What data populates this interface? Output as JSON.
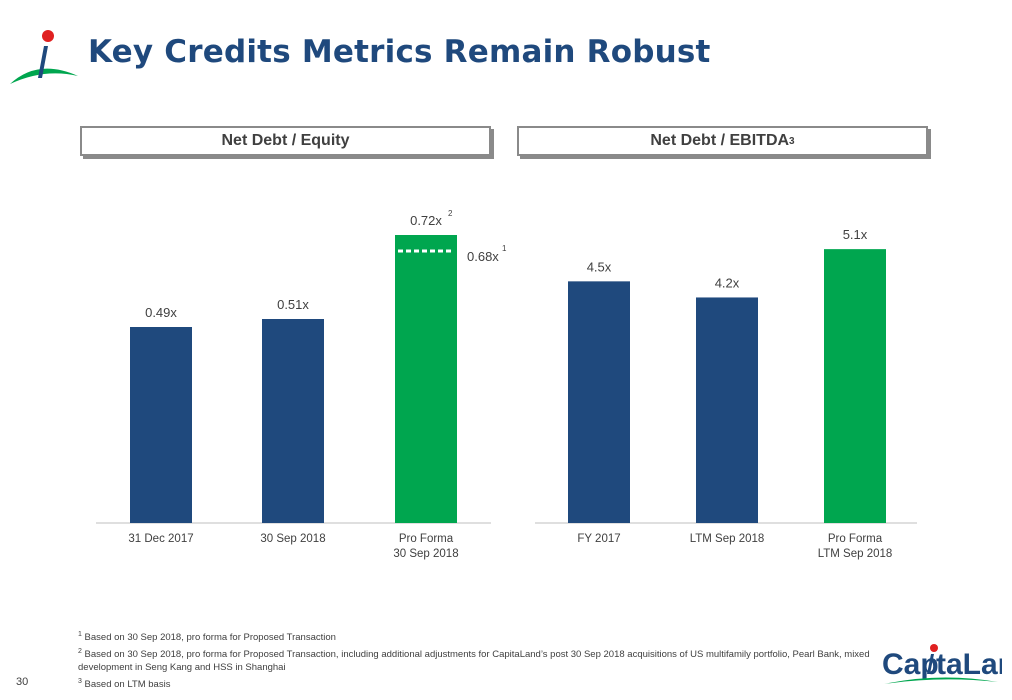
{
  "title": "Key Credits Metrics Remain Robust",
  "page_number": "30",
  "brand": "CapitaLand",
  "colors": {
    "navy": "#1f497d",
    "green": "#00a64f",
    "title": "#1f497d"
  },
  "panels": {
    "left": {
      "heading": "Net Debt / Equity"
    },
    "right": {
      "heading": "Net Debt / EBITDA",
      "heading_sup": "3"
    }
  },
  "chart_data": [
    {
      "type": "bar",
      "title": "Net Debt / Equity",
      "categories": [
        "31 Dec 2017",
        "30 Sep 2018",
        "Pro Forma\n30 Sep 2018"
      ],
      "values": [
        0.49,
        0.51,
        0.72
      ],
      "labels": [
        "0.49x",
        "0.51x",
        "0.72x"
      ],
      "bar_colors": [
        "#1f497d",
        "#1f497d",
        "#00a64f"
      ],
      "label_sups": [
        "",
        "",
        "2"
      ],
      "annotations": [
        {
          "category_index": 2,
          "value": 0.68,
          "label": "0.68x",
          "sup": "1",
          "style": "dashed-line"
        }
      ],
      "ylim": [
        0,
        0.8
      ]
    },
    {
      "type": "bar",
      "title": "Net Debt / EBITDA",
      "categories": [
        "FY 2017",
        "LTM Sep 2018",
        "Pro Forma\nLTM Sep 2018"
      ],
      "values": [
        4.5,
        4.2,
        5.1
      ],
      "labels": [
        "4.5x",
        "4.2x",
        "5.1x"
      ],
      "bar_colors": [
        "#1f497d",
        "#1f497d",
        "#00a64f"
      ],
      "label_sups": [
        "",
        "",
        ""
      ],
      "annotations": [],
      "ylim": [
        0,
        5.5
      ]
    }
  ],
  "footnotes": [
    {
      "sup": "1",
      "text": "Based on 30 Sep 2018, pro forma for Proposed Transaction"
    },
    {
      "sup": "2",
      "text": "Based on 30 Sep 2018, pro forma for Proposed Transaction, including additional adjustments for CapitaLand’s post 30 Sep 2018 acquisitions of US multifamily portfolio, Pearl Bank, mixed development in Seng Kang and HSS in Shanghai"
    },
    {
      "sup": "3",
      "text": "Based on LTM basis"
    }
  ]
}
